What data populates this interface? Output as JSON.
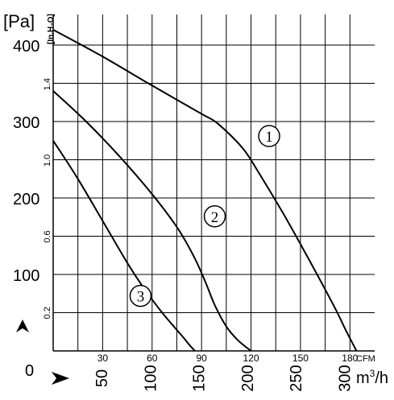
{
  "chart_data": {
    "type": "line",
    "title": "",
    "y_unit_label": "[Pa]",
    "y_alt_unit_label": "[In.H₂O]",
    "x_unit_cfm": "CFM",
    "x_unit_m3h_base": "m",
    "x_unit_m3h_sup": "3",
    "x_unit_m3h_tail": "/h",
    "origin_label": "0",
    "y_ticks": [
      "100",
      "200",
      "300",
      "400"
    ],
    "y_alt_ticks": [
      "0.2",
      "0.6",
      "1.0",
      "1.4"
    ],
    "x_cfm_ticks": [
      "30",
      "60",
      "90",
      "120",
      "150",
      "180"
    ],
    "x_m3h_ticks": [
      "50",
      "100",
      "150",
      "200",
      "250",
      "300"
    ],
    "xlim_cfm": [
      0,
      195
    ],
    "ylim_pa": [
      0,
      440
    ],
    "grid": true,
    "series": [
      {
        "name": "①",
        "x": [
          0,
          30,
          60,
          90,
          100,
          115,
          125,
          140,
          155,
          170,
          178,
          184
        ],
        "y": [
          420,
          385,
          347,
          310,
          297,
          265,
          232,
          178,
          120,
          60,
          25,
          0
        ]
      },
      {
        "name": "②",
        "x": [
          0,
          20,
          40,
          60,
          75,
          85,
          92,
          98,
          105,
          112,
          120
        ],
        "y": [
          340,
          300,
          255,
          205,
          162,
          125,
          92,
          60,
          32,
          14,
          0
        ]
      },
      {
        "name": "③",
        "x": [
          0,
          15,
          30,
          45,
          55,
          65,
          72,
          78,
          83,
          86
        ],
        "y": [
          275,
          225,
          170,
          115,
          82,
          53,
          35,
          20,
          7,
          0
        ]
      }
    ],
    "labels": [
      {
        "text": "①",
        "x": 131,
        "y": 281
      },
      {
        "text": "②",
        "x": 98,
        "y": 176
      },
      {
        "text": "③",
        "x": 53,
        "y": 72
      }
    ]
  }
}
